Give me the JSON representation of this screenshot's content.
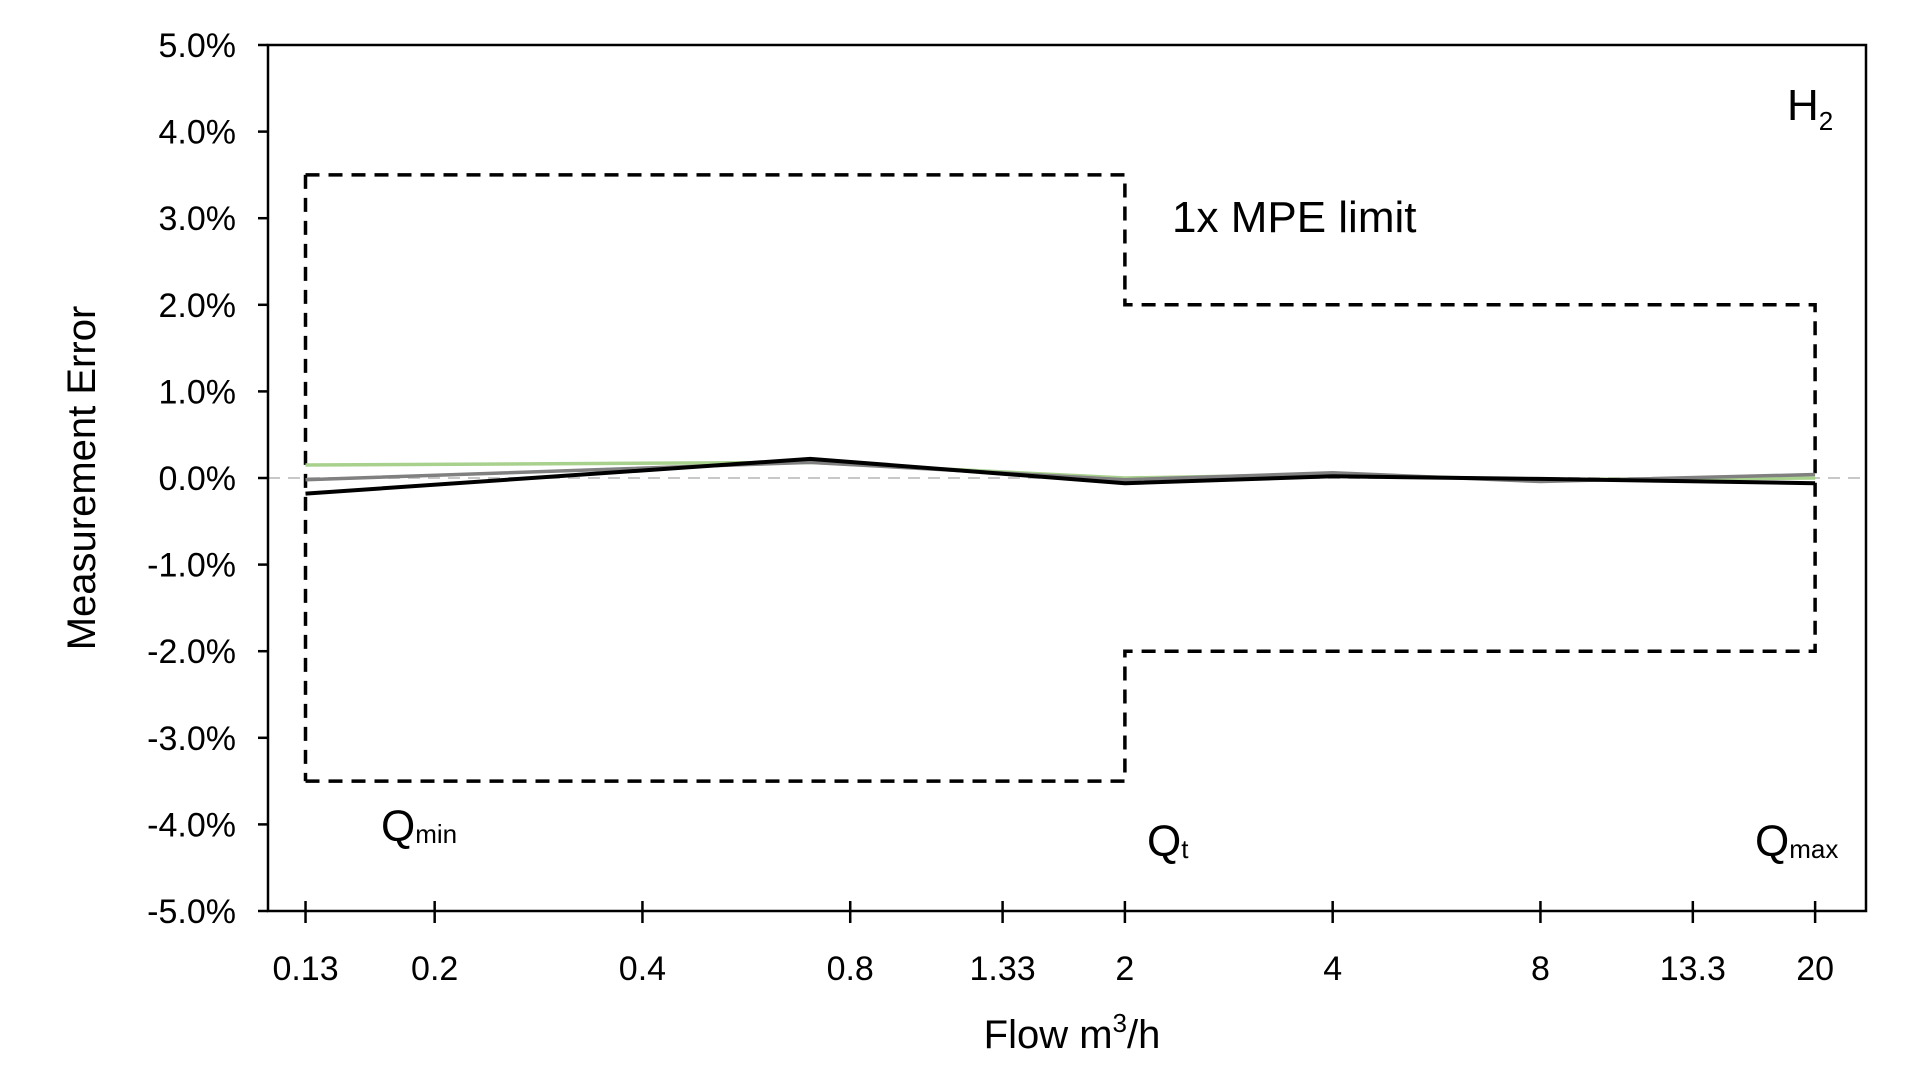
{
  "chart_data": {
    "type": "line",
    "title": "",
    "xlabel": "Flow m",
    "xlabel_sup": "3",
    "xlabel_tail": "/h",
    "ylabel": "Measurement Error",
    "x_scale": "log",
    "xlim": [
      0.1147,
      23.7
    ],
    "ylim": [
      -0.05,
      0.05
    ],
    "x_ticks": [
      {
        "value": 0.13,
        "label": "0.13"
      },
      {
        "value": 0.2,
        "label": "0.2"
      },
      {
        "value": 0.4,
        "label": "0.4"
      },
      {
        "value": 0.8,
        "label": "0.8"
      },
      {
        "value": 1.33,
        "label": "1.33"
      },
      {
        "value": 2,
        "label": "2"
      },
      {
        "value": 4,
        "label": "4"
      },
      {
        "value": 8,
        "label": "8"
      },
      {
        "value": 13.3,
        "label": "13.3"
      },
      {
        "value": 20,
        "label": "20"
      }
    ],
    "y_ticks": [
      {
        "value": 0.05,
        "label": "5.0%"
      },
      {
        "value": 0.04,
        "label": "4.0%"
      },
      {
        "value": 0.03,
        "label": "3.0%"
      },
      {
        "value": 0.02,
        "label": "2.0%"
      },
      {
        "value": 0.01,
        "label": "1.0%"
      },
      {
        "value": 0.0,
        "label": "0.0%"
      },
      {
        "value": -0.01,
        "label": "-1.0%"
      },
      {
        "value": -0.02,
        "label": "-2.0%"
      },
      {
        "value": -0.03,
        "label": "-3.0%"
      },
      {
        "value": -0.04,
        "label": "-4.0%"
      },
      {
        "value": -0.05,
        "label": "-5.0%"
      }
    ],
    "series": [
      {
        "name": "series-green",
        "color": "#a9d18e",
        "x": [
          0.13,
          0.7,
          2,
          4,
          8,
          20
        ],
        "y": [
          0.0015,
          0.0018,
          0.0,
          0.0004,
          -0.0002,
          0.0
        ]
      },
      {
        "name": "series-gray",
        "color": "#808080",
        "x": [
          0.13,
          0.7,
          2,
          4,
          8,
          20
        ],
        "y": [
          -0.0002,
          0.0018,
          -0.0002,
          0.0006,
          -0.0004,
          0.0004
        ]
      },
      {
        "name": "series-black",
        "color": "#000000",
        "x": [
          0.13,
          0.7,
          2,
          4,
          8,
          20
        ],
        "y": [
          -0.0018,
          0.0022,
          -0.0006,
          0.0002,
          -0.0001,
          -0.0006
        ]
      }
    ],
    "reference_line": {
      "name": "zero-line",
      "y": 0.0,
      "color": "#c8c8c8"
    },
    "mpe_limit": {
      "label": "1x MPE limit",
      "upper": {
        "x": [
          0.13,
          2,
          2,
          20,
          20
        ],
        "y": [
          0.035,
          0.035,
          0.02,
          0.02,
          0.0
        ]
      },
      "lower": {
        "x": [
          0.13,
          2,
          2,
          20,
          20
        ],
        "y": [
          -0.035,
          -0.035,
          -0.02,
          -0.02,
          0.0
        ]
      },
      "left_edge": {
        "x": [
          0.13,
          0.13
        ],
        "y": [
          0.035,
          -0.035
        ]
      }
    },
    "annotations": {
      "gas": {
        "main": "H",
        "sub": "2"
      },
      "qmin": {
        "main": "Q",
        "sub": "min"
      },
      "qt": {
        "main": "Q",
        "sub": "t"
      },
      "qmax": {
        "main": "Q",
        "sub": "max"
      }
    }
  }
}
